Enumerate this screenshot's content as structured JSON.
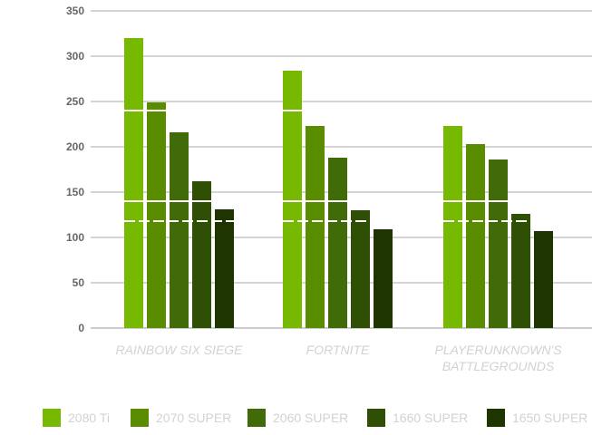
{
  "chart_data": {
    "type": "bar",
    "categories": [
      "RAINBOW SIX SIEGE",
      "FORTNITE",
      "PLAYERUNKNOWN'S BATTLEGROUNDS"
    ],
    "category_lines": [
      [
        "RAINBOW SIX SIEGE"
      ],
      [
        "FORTNITE"
      ],
      [
        "PLAYERUNKNOWN'S",
        "BATTLEGROUNDS"
      ]
    ],
    "series": [
      {
        "name": "2080 Ti",
        "color": "#76b900",
        "values": [
          320,
          284,
          223
        ]
      },
      {
        "name": "2070 SUPER",
        "color": "#5a8c00",
        "values": [
          249,
          223,
          203
        ]
      },
      {
        "name": "2060 SUPER",
        "color": "#416a08",
        "values": [
          216,
          188,
          186
        ]
      },
      {
        "name": "1660 SUPER",
        "color": "#2f4f04",
        "values": [
          162,
          130,
          126
        ]
      },
      {
        "name": "1650 SUPER",
        "color": "#1f3500",
        "values": [
          131,
          109,
          107
        ]
      }
    ],
    "yticks": [
      0,
      50,
      100,
      150,
      200,
      250,
      300,
      350
    ],
    "ylim": [
      0,
      350
    ],
    "grid": true,
    "reference_lines": [
      {
        "value": 240,
        "style": "solid",
        "color": "#ffffff"
      },
      {
        "value": 140,
        "style": "solid",
        "color": "#ffffff"
      },
      {
        "value": 118,
        "style": "dashed",
        "color": "#ffffff"
      }
    ],
    "legend_position": "bottom"
  }
}
